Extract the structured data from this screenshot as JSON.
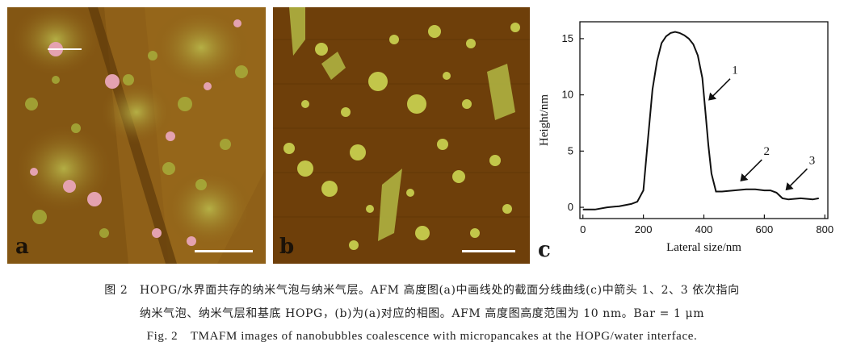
{
  "figure": {
    "panel_a": {
      "label": "a",
      "colors": {
        "bg": "#8a5a14",
        "feature": "#a8b23c",
        "bubble": "#e4a2b0"
      }
    },
    "panel_b": {
      "label": "b",
      "colors": {
        "bg": "#6e3f0a",
        "feature": "#c2c64a"
      }
    },
    "panel_c": {
      "label": "c"
    }
  },
  "chart_data": {
    "type": "line",
    "title": "",
    "xlabel": "Lateral size/nm",
    "ylabel": "Height/nm",
    "xlim": [
      -10,
      810
    ],
    "ylim": [
      -1,
      16.5
    ],
    "xticks": [
      0,
      200,
      400,
      600,
      800
    ],
    "yticks": [
      0,
      5,
      10,
      15
    ],
    "grid": false,
    "series": [
      {
        "x": [
          0,
          40,
          80,
          120,
          160,
          180,
          200,
          215,
          230,
          245,
          260,
          275,
          290,
          305,
          320,
          335,
          350,
          365,
          380,
          395,
          405,
          415,
          425,
          440,
          460,
          500,
          540,
          570,
          600,
          620,
          640,
          660,
          680,
          720,
          760,
          780
        ],
        "y": [
          -0.2,
          -0.2,
          0,
          0.1,
          0.3,
          0.5,
          1.5,
          6,
          10.5,
          13,
          14.6,
          15.2,
          15.5,
          15.6,
          15.5,
          15.3,
          15,
          14.5,
          13.5,
          11.5,
          8.5,
          5.5,
          3,
          1.4,
          1.4,
          1.5,
          1.6,
          1.6,
          1.5,
          1.5,
          1.3,
          0.8,
          0.7,
          0.8,
          0.7,
          0.8
        ]
      }
    ],
    "annotations": [
      {
        "text": "1",
        "arrow_tip": [
          415,
          9.5
        ]
      },
      {
        "text": "2",
        "arrow_tip": [
          520,
          2.3
        ]
      },
      {
        "text": "3",
        "arrow_tip": [
          670,
          1.5
        ]
      }
    ]
  },
  "caption": {
    "zh_line1": "图 2　HOPG/水界面共存的纳米气泡与纳米气层。AFM 高度图(a)中画线处的截面分线曲线(c)中箭头 1、2、3 依次指向",
    "zh_line2": "纳米气泡、纳米气层和基底 HOPG，(b)为(a)对应的相图。AFM 高度图高度范围为 10 nm。Bar = 1 μm",
    "en": "Fig. 2　TMAFM images of nanobubbles coalescence with micropancakes at the HOPG/water interface."
  }
}
